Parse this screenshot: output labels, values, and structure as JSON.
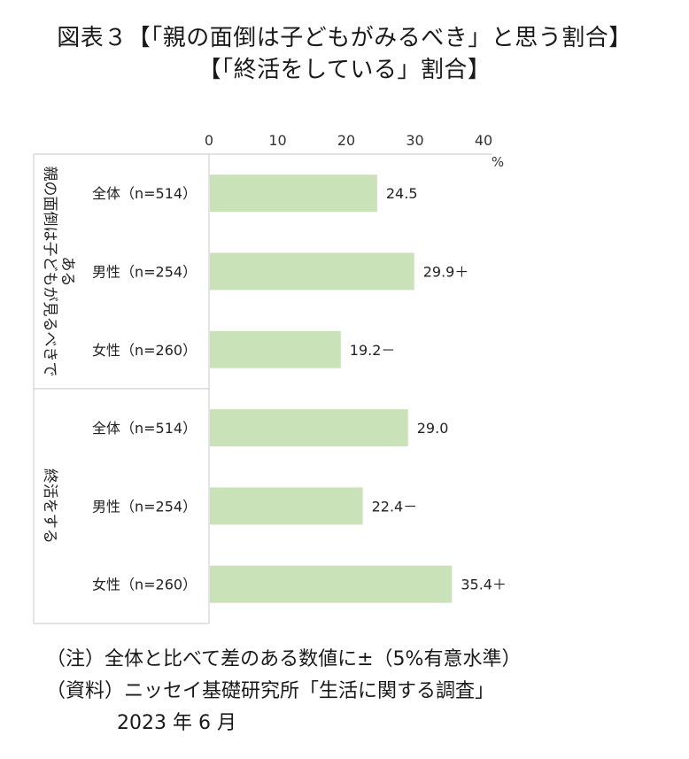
{
  "header": {
    "title_line1": "図表３【「親の面倒は子どもがみるべき」と思う割合】",
    "title_line2": "【「終活をしている」割合】"
  },
  "chart_data": {
    "type": "bar",
    "orientation": "horizontal",
    "unit": "%",
    "xlim": [
      0,
      40
    ],
    "ticks": [
      0,
      10,
      20,
      30,
      40
    ],
    "grid": false,
    "groups": [
      {
        "label": "親の面倒は子どもが見るべきである",
        "label_lines": [
          "親の面倒は子どもが見るべきで",
          "ある"
        ],
        "bars": [
          {
            "category": "全体（n=514）",
            "value": 24.5,
            "label": "24.5"
          },
          {
            "category": "男性（n=254）",
            "value": 29.9,
            "label": "29.9＋"
          },
          {
            "category": "女性（n=260）",
            "value": 19.2,
            "label": "19.2－"
          }
        ]
      },
      {
        "label": "終活をする",
        "label_lines": [
          "終活をする"
        ],
        "bars": [
          {
            "category": "全体（n=514）",
            "value": 29.0,
            "label": "29.0"
          },
          {
            "category": "男性（n=254）",
            "value": 22.4,
            "label": "22.4－"
          },
          {
            "category": "女性（n=260）",
            "value": 35.4,
            "label": "35.4＋"
          }
        ]
      }
    ],
    "bar_color": "#c9e2b8",
    "axis_color": "#c8c8c8"
  },
  "notes": {
    "note": "（注）全体と比べて差のある数値に±（5%有意水準）",
    "source": "（資料）ニッセイ基礎研究所「生活に関する調査」",
    "date": "2023 年 6 月"
  }
}
